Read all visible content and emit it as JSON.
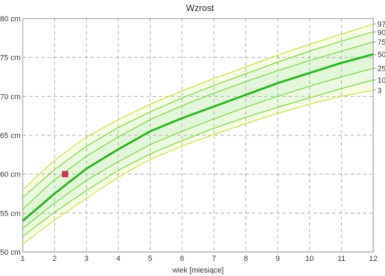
{
  "chart_data": {
    "type": "line",
    "title": "Wzrost",
    "xlabel": "wiek [miesiące]",
    "ylabel": "",
    "xlim": [
      1,
      12
    ],
    "ylim": [
      50,
      80
    ],
    "x_ticks": [
      "1",
      "2",
      "3",
      "4",
      "5",
      "6",
      "7",
      "8",
      "9",
      "10",
      "11",
      "12"
    ],
    "y_ticks": [
      "50 cm",
      "55 cm",
      "60 cm",
      "65 cm",
      "70 cm",
      "75 cm",
      "80 cm"
    ],
    "grid": true,
    "right_axis_labels": [
      "97",
      "90",
      "75",
      "50",
      "25",
      "10",
      "3"
    ],
    "x": [
      1,
      2,
      3,
      4,
      5,
      6,
      7,
      8,
      9,
      10,
      11,
      12
    ],
    "series": [
      {
        "name": "97",
        "color": "#c8dc3c",
        "values": [
          58.0,
          61.8,
          64.8,
          67.0,
          69.0,
          70.7,
          72.3,
          73.8,
          75.3,
          76.7,
          78.0,
          79.3
        ]
      },
      {
        "name": "90",
        "color": "#78d23c",
        "values": [
          57.0,
          60.6,
          63.6,
          66.0,
          68.0,
          69.8,
          71.4,
          72.9,
          74.4,
          75.8,
          77.1,
          78.3
        ]
      },
      {
        "name": "75",
        "color": "#78d23c",
        "values": [
          55.5,
          59.3,
          62.3,
          64.8,
          67.0,
          68.8,
          70.4,
          71.9,
          73.3,
          74.6,
          75.8,
          77.0
        ]
      },
      {
        "name": "50",
        "color": "#28b41e",
        "values": [
          54.0,
          57.5,
          60.7,
          63.2,
          65.5,
          67.2,
          68.7,
          70.2,
          71.7,
          73.0,
          74.3,
          75.4
        ]
      },
      {
        "name": "25",
        "color": "#78d23c",
        "values": [
          53.0,
          56.3,
          59.2,
          61.6,
          63.8,
          65.5,
          67.1,
          68.6,
          70.0,
          71.3,
          72.5,
          73.6
        ]
      },
      {
        "name": "10",
        "color": "#78d23c",
        "values": [
          52.0,
          55.1,
          57.9,
          60.5,
          62.6,
          64.3,
          65.9,
          67.3,
          68.6,
          69.8,
          71.0,
          72.1
        ]
      },
      {
        "name": "3",
        "color": "#c8dc3c",
        "values": [
          51.0,
          54.1,
          56.9,
          59.6,
          61.9,
          63.6,
          65.1,
          66.5,
          67.8,
          69.0,
          70.0,
          70.8
        ]
      }
    ],
    "measurements": [
      {
        "x": 2.33,
        "y": 60.0,
        "color": "#c0385a"
      }
    ]
  }
}
